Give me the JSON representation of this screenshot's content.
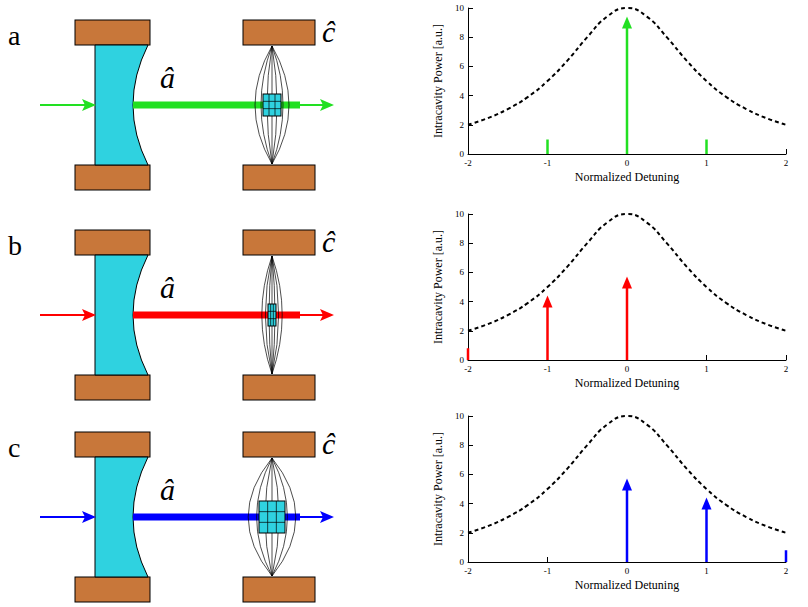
{
  "panels": [
    {
      "letter": "a",
      "labels": [
        "â",
        "ĉ"
      ]
    },
    {
      "letter": "b",
      "labels": [
        "â",
        "ĉ"
      ]
    },
    {
      "letter": "c",
      "labels": [
        "â",
        "ĉ"
      ]
    }
  ],
  "chart_data": [
    {
      "type": "line",
      "xlabel": "Normalized Detuning",
      "ylabel": "Intracavity Power [a.u.]",
      "xlim": [
        -2,
        2
      ],
      "ylim": [
        0,
        10
      ],
      "xticks": [
        -2,
        -1,
        0,
        1,
        2
      ],
      "yticks": [
        0,
        2,
        4,
        6,
        8,
        10
      ],
      "grid": false,
      "series": [
        {
          "type": "line",
          "line_style": "dashed",
          "marker": "none",
          "color": "#000000",
          "x": [
            -2,
            -1.75,
            -1.5,
            -1.25,
            -1,
            -0.75,
            -0.5,
            -0.25,
            0,
            0.25,
            0.5,
            0.75,
            1,
            1.25,
            1.5,
            1.75,
            2
          ],
          "values": [
            2,
            2.46,
            3.08,
            3.9,
            5,
            6.4,
            8,
            9.41,
            10,
            9.41,
            8,
            6.4,
            5,
            3.9,
            3.08,
            2.46,
            2
          ]
        },
        {
          "type": "stem",
          "marker": "arrow",
          "color": "#22e022",
          "x": [
            0
          ],
          "values": [
            9
          ]
        },
        {
          "type": "stem",
          "marker": "none",
          "color": "#22e022",
          "x": [
            -1,
            1
          ],
          "values": [
            1,
            1
          ]
        }
      ]
    },
    {
      "type": "line",
      "xlabel": "Normalized Detuning",
      "ylabel": "Intracavity Power [a.u.]",
      "xlim": [
        -2,
        2
      ],
      "ylim": [
        0,
        10
      ],
      "xticks": [
        -2,
        -1,
        0,
        1,
        2
      ],
      "yticks": [
        0,
        2,
        4,
        6,
        8,
        10
      ],
      "grid": false,
      "series": [
        {
          "type": "line",
          "line_style": "dashed",
          "marker": "none",
          "color": "#000000",
          "x": [
            -2,
            -1.75,
            -1.5,
            -1.25,
            -1,
            -0.75,
            -0.5,
            -0.25,
            0,
            0.25,
            0.5,
            0.75,
            1,
            1.25,
            1.5,
            1.75,
            2
          ],
          "values": [
            2,
            2.46,
            3.08,
            3.9,
            5,
            6.4,
            8,
            9.41,
            10,
            9.41,
            8,
            6.4,
            5,
            3.9,
            3.08,
            2.46,
            2
          ]
        },
        {
          "type": "stem",
          "marker": "arrow",
          "color": "#ff0000",
          "x": [
            -1,
            0
          ],
          "values": [
            4,
            5.3
          ]
        },
        {
          "type": "stem",
          "marker": "none",
          "color": "#ff0000",
          "x": [
            -2
          ],
          "values": [
            0.8
          ]
        }
      ]
    },
    {
      "type": "line",
      "xlabel": "Normalized Detuning",
      "ylabel": "Intracavity Power [a.u.]",
      "xlim": [
        -2,
        2
      ],
      "ylim": [
        0,
        10
      ],
      "xticks": [
        -2,
        -1,
        0,
        1,
        2
      ],
      "yticks": [
        0,
        2,
        4,
        6,
        8,
        10
      ],
      "grid": false,
      "series": [
        {
          "type": "line",
          "line_style": "dashed",
          "marker": "none",
          "color": "#000000",
          "x": [
            -2,
            -1.75,
            -1.5,
            -1.25,
            -1,
            -0.75,
            -0.5,
            -0.25,
            0,
            0.25,
            0.5,
            0.75,
            1,
            1.25,
            1.5,
            1.75,
            2
          ],
          "values": [
            2,
            2.46,
            3.08,
            3.9,
            5,
            6.4,
            8,
            9.41,
            10,
            9.41,
            8,
            6.4,
            5,
            3.9,
            3.08,
            2.46,
            2
          ]
        },
        {
          "type": "stem",
          "marker": "arrow",
          "color": "#0000ff",
          "x": [
            0,
            1
          ],
          "values": [
            5.3,
            4
          ]
        },
        {
          "type": "stem",
          "marker": "none",
          "color": "#0000ff",
          "x": [
            2
          ],
          "values": [
            0.8
          ]
        }
      ]
    }
  ]
}
